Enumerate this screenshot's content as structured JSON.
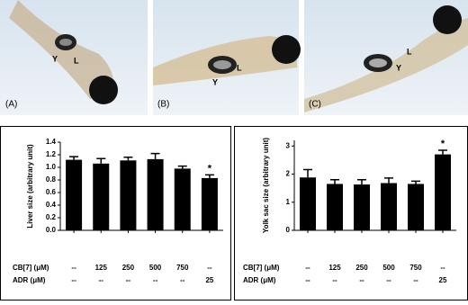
{
  "photos": [
    {
      "label": "(A)",
      "yolk": "Y",
      "liver": "L"
    },
    {
      "label": "(B)",
      "yolk": "Y",
      "liver": "L"
    },
    {
      "label": "(C)",
      "yolk": "Y",
      "liver": "L"
    }
  ],
  "chart_data": [
    {
      "type": "bar",
      "y_label": "Liver size (arbitrary unit)",
      "color": "#000000",
      "category_rows": [
        {
          "name": "CB[7] (μM)",
          "labels": [
            "--",
            "125",
            "250",
            "500",
            "750",
            "--"
          ]
        },
        {
          "name": "ADR (μM)",
          "labels": [
            "--",
            "--",
            "--",
            "--",
            "--",
            "25"
          ]
        }
      ],
      "values": [
        1.12,
        1.06,
        1.11,
        1.13,
        0.98,
        0.83
      ],
      "errors": [
        0.05,
        0.08,
        0.05,
        0.09,
        0.04,
        0.05
      ],
      "annotations": [
        {
          "text": "*",
          "x": 5
        }
      ],
      "ylim": [
        0,
        1.4
      ],
      "yticks": [
        {
          "value": 0,
          "label": "0.0"
        },
        {
          "value": 0.2,
          "label": "0.2"
        },
        {
          "value": 0.4,
          "label": "0.4"
        },
        {
          "value": 0.6,
          "label": "0.6"
        },
        {
          "value": 0.8,
          "label": "0.8"
        },
        {
          "value": 1,
          "label": "1.0"
        },
        {
          "value": 1.2,
          "label": "1.2"
        },
        {
          "value": 1.4,
          "label": "1.4"
        }
      ]
    },
    {
      "type": "bar",
      "y_label": "Yolk sac size (arbitrary unit)",
      "color": "#000000",
      "category_rows": [
        {
          "name": "CB[7] (μM)",
          "labels": [
            "--",
            "125",
            "250",
            "500",
            "750",
            "--"
          ]
        },
        {
          "name": "ADR (μM)",
          "labels": [
            "--",
            "--",
            "--",
            "--",
            "--",
            "25"
          ]
        }
      ],
      "values": [
        1.88,
        1.65,
        1.63,
        1.68,
        1.65,
        2.7
      ],
      "errors": [
        0.28,
        0.15,
        0.17,
        0.18,
        0.1,
        0.15
      ],
      "annotations": [
        {
          "text": "*",
          "x": 5
        }
      ],
      "ylim": [
        0,
        3.2
      ],
      "yticks": [
        0,
        1,
        2,
        3
      ]
    }
  ]
}
